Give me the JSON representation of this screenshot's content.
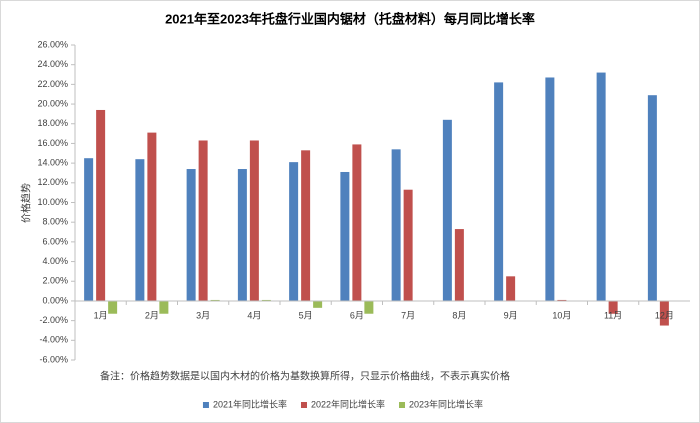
{
  "chart_data": {
    "type": "bar",
    "title": "2021年至2023年托盘行业国内锯材（托盘材料）每月同比增长率",
    "y_label": "价格趋势",
    "note": "备注：价格趋势数据是以国内木材的价格为基数换算所得，只显示价格曲线，不表示真实价格",
    "categories": [
      "1月",
      "2月",
      "3月",
      "4月",
      "5月",
      "6月",
      "7月",
      "8月",
      "9月",
      "10月",
      "11月",
      "12月"
    ],
    "series": [
      {
        "name": "2021年同比增长率",
        "color": "#4f81bd",
        "values": [
          14.5,
          14.4,
          13.4,
          13.4,
          14.1,
          13.1,
          15.4,
          18.4,
          22.2,
          22.7,
          23.2,
          20.9
        ]
      },
      {
        "name": "2022年同比增长率",
        "color": "#c0504d",
        "values": [
          19.4,
          17.1,
          16.3,
          16.3,
          15.3,
          15.9,
          11.3,
          7.3,
          2.5,
          0.1,
          -1.3,
          -2.5
        ]
      },
      {
        "name": "2023年同比增长率",
        "color": "#9bbb59",
        "values": [
          -1.3,
          -1.3,
          0.1,
          0.1,
          -0.7,
          -1.3,
          null,
          null,
          null,
          null,
          null,
          null
        ]
      }
    ],
    "ylim": [
      -6,
      26
    ],
    "yticks": [
      {
        "value": -6,
        "label": "-6.00%"
      },
      {
        "value": -4,
        "label": "-4.00%"
      },
      {
        "value": -2,
        "label": "-2.00%"
      },
      {
        "value": 0,
        "label": "0.00%"
      },
      {
        "value": 2,
        "label": "2.00%"
      },
      {
        "value": 4,
        "label": "4.00%"
      },
      {
        "value": 6,
        "label": "6.00%"
      },
      {
        "value": 8,
        "label": "8.00%"
      },
      {
        "value": 10,
        "label": "10.00%"
      },
      {
        "value": 12,
        "label": "12.00%"
      },
      {
        "value": 14,
        "label": "14.00%"
      },
      {
        "value": 16,
        "label": "16.00%"
      },
      {
        "value": 18,
        "label": "18.00%"
      },
      {
        "value": 20,
        "label": "20.00%"
      },
      {
        "value": 22,
        "label": "22.00%"
      },
      {
        "value": 24,
        "label": "24.00%"
      },
      {
        "value": 26,
        "label": "26.00%"
      }
    ],
    "grid": false,
    "legend": "bottom"
  }
}
